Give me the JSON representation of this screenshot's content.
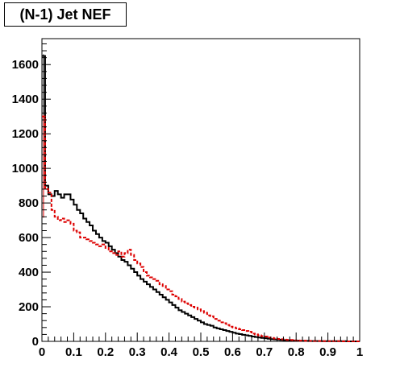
{
  "chart_data": {
    "type": "histogram",
    "title": "(N-1) Jet NEF",
    "xlabel": "",
    "ylabel": "",
    "xlim": [
      0,
      1
    ],
    "ylim": [
      0,
      1750
    ],
    "grid": false,
    "legend": "none",
    "bin_width": 0.01,
    "xticks": [
      {
        "value": 0,
        "label": "0"
      },
      {
        "value": 0.1,
        "label": "0.1"
      },
      {
        "value": 0.2,
        "label": "0.2"
      },
      {
        "value": 0.3,
        "label": "0.3"
      },
      {
        "value": 0.4,
        "label": "0.4"
      },
      {
        "value": 0.5,
        "label": "0.5"
      },
      {
        "value": 0.6,
        "label": "0.6"
      },
      {
        "value": 0.7,
        "label": "0.7"
      },
      {
        "value": 0.8,
        "label": "0.8"
      },
      {
        "value": 0.9,
        "label": "0.9"
      },
      {
        "value": 1,
        "label": "1"
      }
    ],
    "yticks": [
      {
        "value": 0,
        "label": "0"
      },
      {
        "value": 200,
        "label": "200"
      },
      {
        "value": 400,
        "label": "400"
      },
      {
        "value": 600,
        "label": "600"
      },
      {
        "value": 800,
        "label": "800"
      },
      {
        "value": 1000,
        "label": "1000"
      },
      {
        "value": 1200,
        "label": "1200"
      },
      {
        "value": 1400,
        "label": "1400"
      },
      {
        "value": 1600,
        "label": "1600"
      }
    ],
    "series": [
      {
        "color": "#000000",
        "style": "solid",
        "values": [
          1650,
          900,
          850,
          840,
          870,
          850,
          830,
          850,
          850,
          820,
          790,
          760,
          740,
          710,
          690,
          670,
          640,
          620,
          600,
          580,
          570,
          550,
          530,
          510,
          490,
          470,
          460,
          440,
          420,
          400,
          380,
          360,
          345,
          330,
          315,
          300,
          285,
          270,
          255,
          240,
          225,
          210,
          195,
          180,
          170,
          160,
          150,
          140,
          130,
          120,
          110,
          100,
          95,
          90,
          80,
          75,
          70,
          65,
          60,
          55,
          50,
          45,
          42,
          38,
          35,
          32,
          28,
          25,
          22,
          20,
          18,
          15,
          13,
          11,
          10,
          8,
          7,
          6,
          5,
          4,
          4,
          3,
          3,
          3,
          2,
          2,
          2,
          2,
          1,
          1,
          1,
          1,
          1,
          1,
          1,
          1,
          0,
          0,
          0,
          0
        ]
      },
      {
        "color": "#dd0000",
        "style": "dashed",
        "values": [
          1300,
          880,
          860,
          760,
          720,
          700,
          710,
          690,
          700,
          680,
          640,
          630,
          600,
          600,
          590,
          580,
          570,
          560,
          550,
          560,
          540,
          520,
          510,
          500,
          520,
          490,
          510,
          530,
          500,
          470,
          450,
          430,
          400,
          380,
          370,
          360,
          350,
          330,
          320,
          300,
          290,
          270,
          260,
          245,
          230,
          220,
          210,
          200,
          195,
          185,
          175,
          165,
          150,
          145,
          130,
          120,
          110,
          105,
          95,
          85,
          80,
          75,
          70,
          65,
          60,
          55,
          45,
          40,
          35,
          30,
          28,
          22,
          20,
          16,
          14,
          12,
          10,
          9,
          8,
          6,
          5,
          4,
          4,
          3,
          3,
          2,
          2,
          2,
          1,
          1,
          1,
          1,
          1,
          1,
          0,
          0,
          0,
          0,
          0,
          0
        ]
      }
    ]
  }
}
